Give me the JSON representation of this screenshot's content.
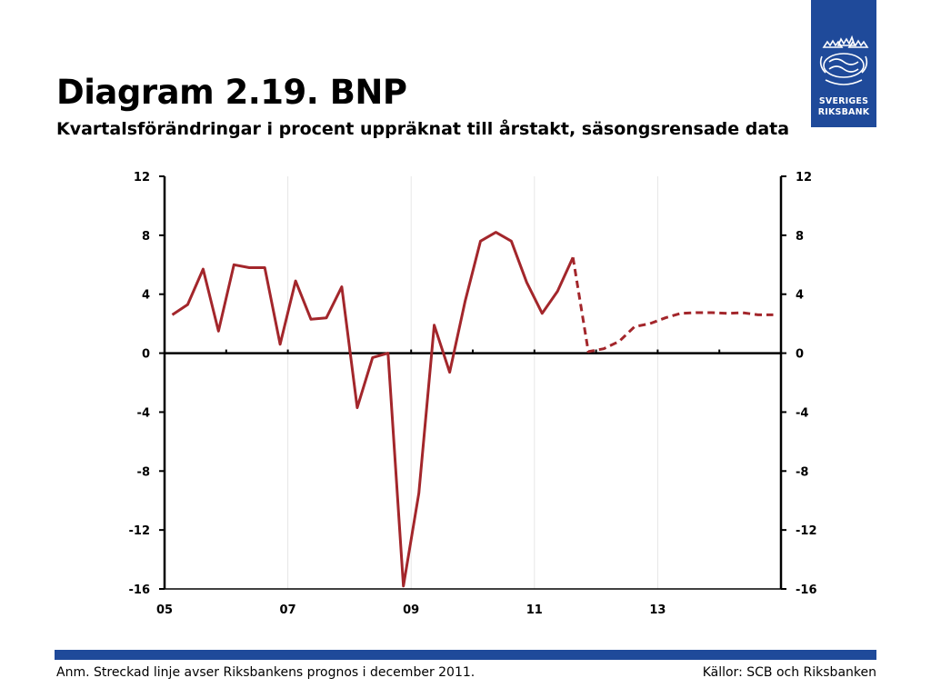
{
  "header": {
    "title": "Diagram 2.19. BNP",
    "subtitle": "Kvartalsförändringar i procent uppräknat till årstakt, säsongsrensade data"
  },
  "logo": {
    "line1": "SVERIGES",
    "line2": "RIKSBANK",
    "color": "#1f4a9a"
  },
  "footer": {
    "note": "Anm. Streckad linje avser Riksbankens prognos i december 2011.",
    "source": "Källor: SCB och Riksbanken"
  },
  "chart_data": {
    "type": "line",
    "x_tick_labels": [
      "05",
      "07",
      "09",
      "11",
      "13"
    ],
    "x_tick_values": [
      2005,
      2007,
      2009,
      2011,
      2013
    ],
    "xlim": [
      2005,
      2015
    ],
    "ylim": [
      -16,
      12
    ],
    "y_ticks": [
      12,
      8,
      4,
      0,
      -4,
      -8,
      -12,
      -16
    ],
    "y_tick_labels": [
      "12",
      "8",
      "4",
      "0",
      "-4",
      "-8",
      "-12",
      "-16"
    ],
    "grid": "vertical",
    "line_color": "#a3262b",
    "series": [
      {
        "style": "solid",
        "x": [
          2005.125,
          2005.375,
          2005.625,
          2005.875,
          2006.125,
          2006.375,
          2006.625,
          2006.875,
          2007.125,
          2007.375,
          2007.625,
          2007.875,
          2008.125,
          2008.375,
          2008.625,
          2008.875,
          2009.125,
          2009.375,
          2009.625,
          2009.875,
          2010.125,
          2010.375,
          2010.625,
          2010.875,
          2011.125,
          2011.375,
          2011.625
        ],
        "y": [
          2.6,
          3.3,
          5.7,
          1.5,
          6.0,
          5.8,
          5.8,
          0.6,
          4.9,
          2.3,
          2.4,
          4.5,
          -3.7,
          -0.3,
          0.0,
          -15.8,
          -9.5,
          1.9,
          -1.3,
          3.5,
          7.6,
          8.2,
          7.6,
          4.8,
          2.7,
          4.2,
          6.5
        ]
      },
      {
        "style": "dashed",
        "x": [
          2011.625,
          2011.875,
          2012.125,
          2012.375,
          2012.625,
          2012.875,
          2013.125,
          2013.375,
          2013.625,
          2013.875,
          2014.125,
          2014.375,
          2014.625,
          2014.875
        ],
        "y": [
          6.5,
          0.1,
          0.3,
          0.8,
          1.8,
          2.0,
          2.4,
          2.7,
          2.75,
          2.75,
          2.7,
          2.75,
          2.6,
          2.6
        ]
      }
    ]
  }
}
